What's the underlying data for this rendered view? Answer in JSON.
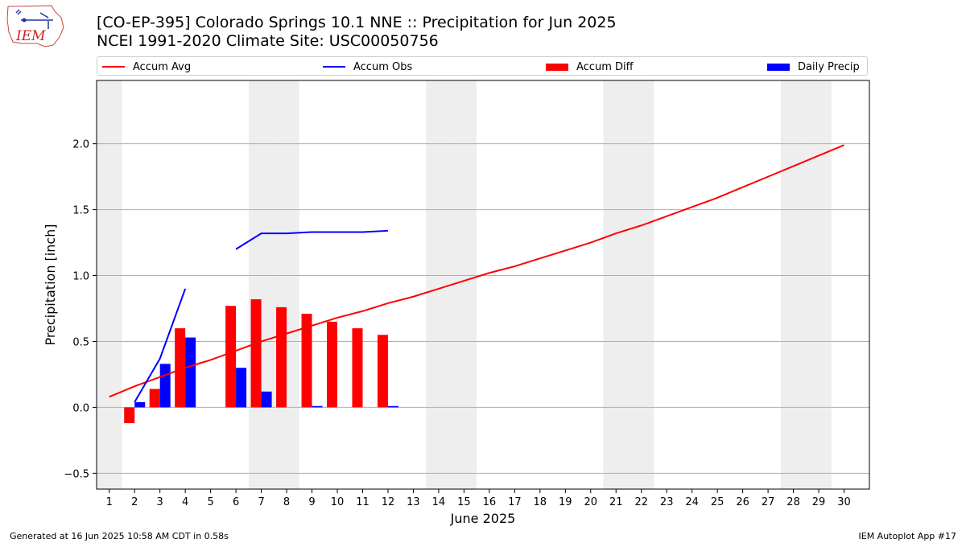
{
  "header": {
    "title_line1": "[CO-EP-395] Colorado Springs 10.1 NNE :: Precipitation for Jun 2025",
    "title_line2": "NCEI 1991-2020 Climate Site: USC00050756",
    "logo_text": "IEM"
  },
  "legend": {
    "accum_avg": "Accum Avg",
    "accum_obs": "Accum Obs",
    "accum_diff": "Accum Diff",
    "daily_precip": "Daily Precip"
  },
  "footer": {
    "generated": "Generated at 16 Jun 2025 10:58 AM CDT in 0.58s",
    "app": "IEM Autoplot App #17"
  },
  "colors": {
    "avg": "#ff0000",
    "obs": "#0000ff",
    "diff": "#ff0000",
    "daily": "#0000ff",
    "weekend_shade": "#eeeeee",
    "grid": "#b0b0b0"
  },
  "chart_data": {
    "type": "bar",
    "xlabel": "June 2025",
    "ylabel": "Precipitation [inch]",
    "xlim": [
      0.5,
      31
    ],
    "ylim": [
      -0.62,
      2.48
    ],
    "x_ticks": [
      1,
      2,
      3,
      4,
      5,
      6,
      7,
      8,
      9,
      10,
      11,
      12,
      13,
      14,
      15,
      16,
      17,
      18,
      19,
      20,
      21,
      22,
      23,
      24,
      25,
      26,
      27,
      28,
      29,
      30
    ],
    "y_ticks": [
      -0.5,
      0.0,
      0.5,
      1.0,
      1.5,
      2.0
    ],
    "y_tick_labels": [
      "−0.5",
      "0.0",
      "0.5",
      "1.0",
      "1.5",
      "2.0"
    ],
    "grid": "horizontal",
    "legend_position": "top",
    "weekend_days": [
      1,
      7,
      8,
      14,
      15,
      21,
      22,
      28,
      29
    ],
    "accum_avg": {
      "days": [
        1,
        2,
        3,
        4,
        5,
        6,
        7,
        8,
        9,
        10,
        11,
        12,
        13,
        14,
        15,
        16,
        17,
        18,
        19,
        20,
        21,
        22,
        23,
        24,
        25,
        26,
        27,
        28,
        29,
        30
      ],
      "values": [
        0.08,
        0.16,
        0.23,
        0.3,
        0.36,
        0.43,
        0.5,
        0.56,
        0.62,
        0.68,
        0.73,
        0.79,
        0.84,
        0.9,
        0.96,
        1.02,
        1.07,
        1.13,
        1.19,
        1.25,
        1.32,
        1.38,
        1.45,
        1.52,
        1.59,
        1.67,
        1.75,
        1.83,
        1.91,
        1.99
      ]
    },
    "accum_obs": {
      "segments": [
        {
          "days": [
            2,
            3,
            4
          ],
          "values": [
            0.04,
            0.37,
            0.9
          ]
        },
        {
          "days": [
            6,
            7,
            8,
            9,
            10,
            11,
            12
          ],
          "values": [
            1.2,
            1.32,
            1.32,
            1.33,
            1.33,
            1.33,
            1.34
          ]
        }
      ]
    },
    "accum_diff": {
      "days": [
        2,
        3,
        4,
        6,
        7,
        8,
        9,
        10,
        11,
        12
      ],
      "values": [
        -0.12,
        0.14,
        0.6,
        0.77,
        0.82,
        0.76,
        0.71,
        0.65,
        0.6,
        0.55
      ]
    },
    "daily_precip": {
      "days": [
        2,
        3,
        4,
        6,
        7,
        9,
        12
      ],
      "values": [
        0.04,
        0.33,
        0.53,
        0.3,
        0.12,
        0.01,
        0.01
      ]
    }
  }
}
